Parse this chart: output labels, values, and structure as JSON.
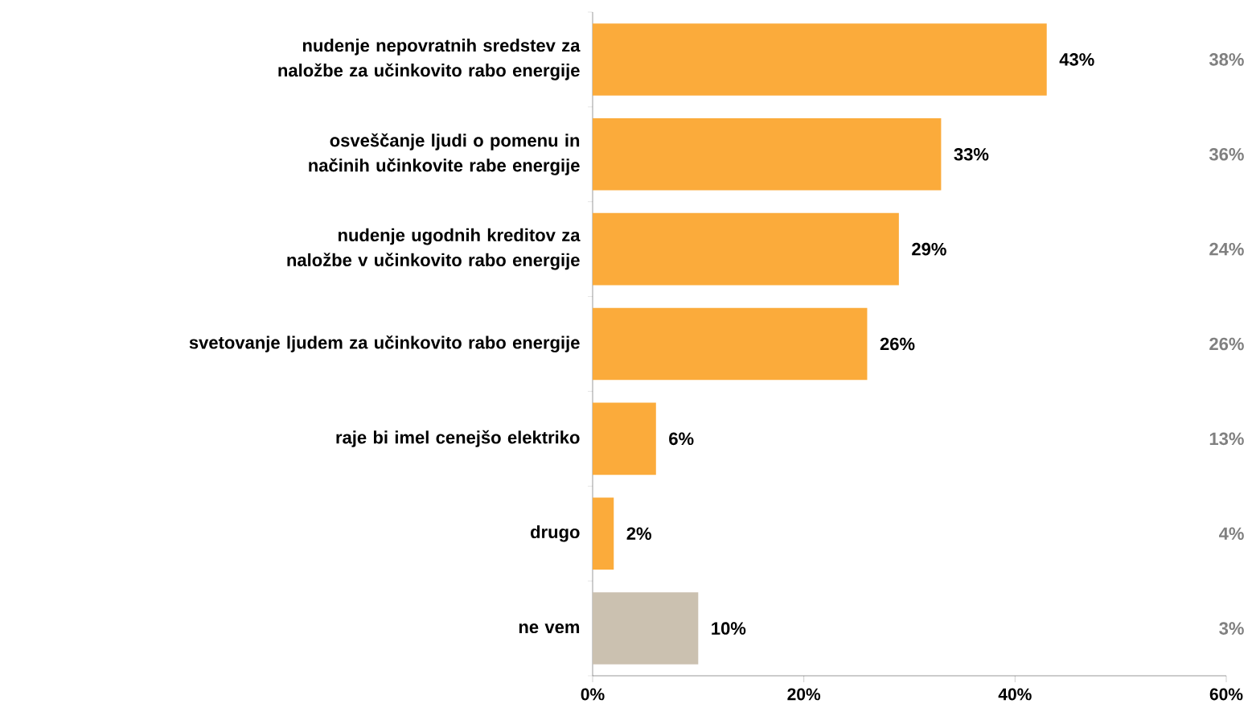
{
  "chart_data": {
    "type": "bar",
    "orientation": "horizontal",
    "categories": [
      "nudenje nepovratnih sredstev za naložbe za učinkovito rabo energije",
      "osveščanje ljudi o pomenu in načinih učinkovite rabe energije",
      "nudenje ugodnih kreditov za naložbe v učinkovito rabo energije",
      "svetovanje ljudem za učinkovito rabo energije",
      "raje bi imel cenejšo elektriko",
      "drugo",
      "ne vem"
    ],
    "values": [
      43,
      33,
      29,
      26,
      6,
      2,
      10
    ],
    "value_labels": [
      "43%",
      "33%",
      "29%",
      "26%",
      "6%",
      "2%",
      "10%"
    ],
    "colors": [
      "#fbab3b",
      "#fbab3b",
      "#fbab3b",
      "#fbab3b",
      "#fbab3b",
      "#fbab3b",
      "#cbc1b0"
    ],
    "xlim": [
      0,
      60
    ],
    "xticks": [
      {
        "value": 0,
        "label": "0%"
      },
      {
        "value": 20,
        "label": "20%"
      },
      {
        "value": 40,
        "label": "40%"
      },
      {
        "value": 60,
        "label": "60%"
      }
    ],
    "annotations": [
      "38%",
      "36%",
      "24%",
      "26%",
      "13%",
      "4%",
      "3%"
    ]
  }
}
